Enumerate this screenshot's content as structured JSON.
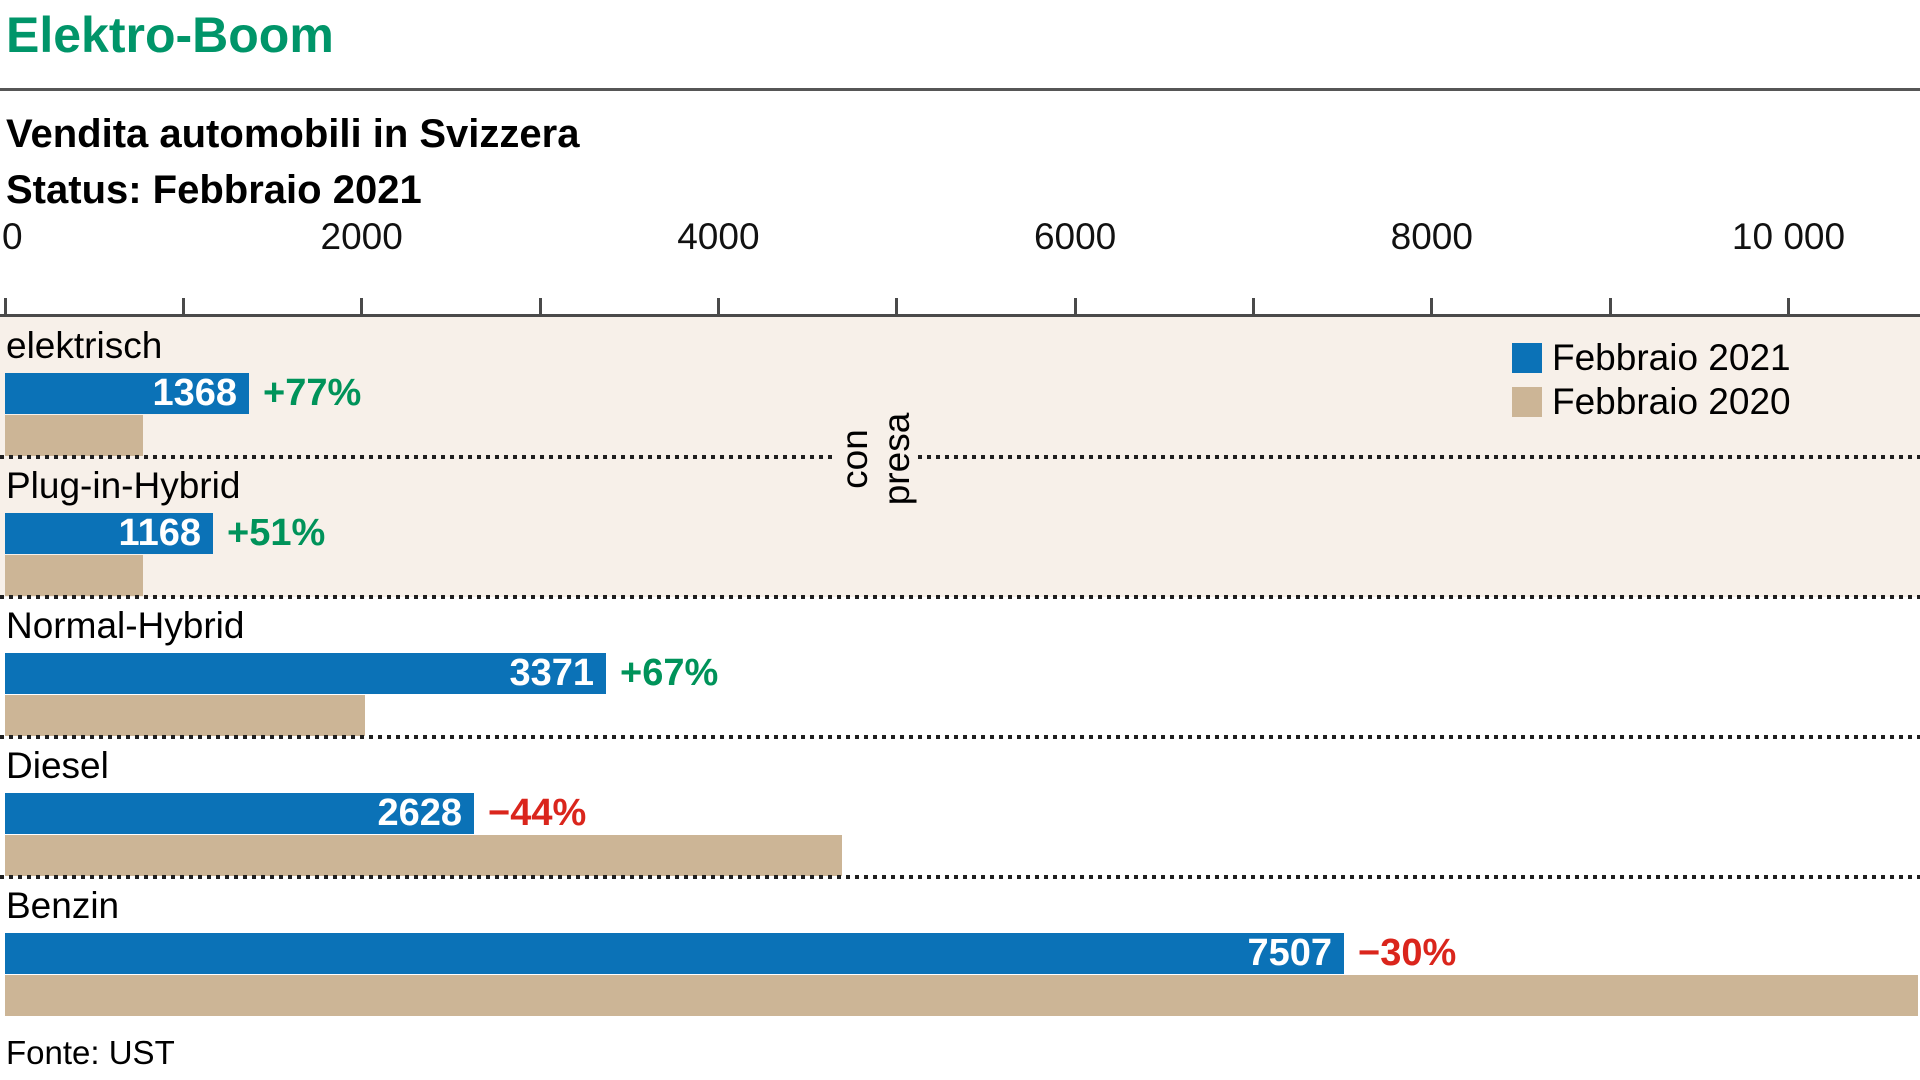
{
  "chart_data": {
    "type": "bar",
    "orientation": "horizontal",
    "title": "Elektro-Boom",
    "subtitle": "Vendita automobili in Svizzera",
    "status_line": "Status: Febbraio 2021",
    "source": "Fonte: UST",
    "categories": [
      "elektrisch",
      "Plug-in-Hybrid",
      "Normal-Hybrid",
      "Diesel",
      "Benzin"
    ],
    "series": [
      {
        "name": "Febbraio 2021",
        "color": "#0b72b7",
        "values": [
          1368,
          1168,
          3371,
          2628,
          7507
        ],
        "value_labels": [
          "1368",
          "1168",
          "3371",
          "2628",
          "7507"
        ]
      },
      {
        "name": "Febbraio 2020",
        "color": "#ccb596",
        "values": [
          773,
          774,
          2018,
          4693,
          10724
        ],
        "values_estimated_from_change_pct": true
      }
    ],
    "change_pct": [
      "+77%",
      "+51%",
      "+67%",
      "−44%",
      "−30%"
    ],
    "change_direction": [
      "up",
      "up",
      "up",
      "down",
      "down"
    ],
    "colors": {
      "positive": "#00935a",
      "negative": "#da251c",
      "title_green": "#009569",
      "bar_2021_blue": "#0b72b7",
      "bar_2020_tan": "#ccb596",
      "highlight_band_beige": "#f7f0e9",
      "axis_gray": "#4a4a4a"
    },
    "x_axis": {
      "tick_step": 1000,
      "tick_min": 0,
      "tick_max": 10000,
      "label_values": [
        0,
        2000,
        4000,
        6000,
        8000,
        10000
      ],
      "labels": [
        "0",
        "2000",
        "4000",
        "6000",
        "8000",
        "10 000"
      ],
      "max": 10760
    },
    "annotation": {
      "text": "con presa",
      "lines": [
        "con",
        "presa"
      ],
      "applies_to": [
        "elektrisch",
        "Plug-in-Hybrid"
      ]
    },
    "legend_position": "top-right",
    "grid": false
  }
}
